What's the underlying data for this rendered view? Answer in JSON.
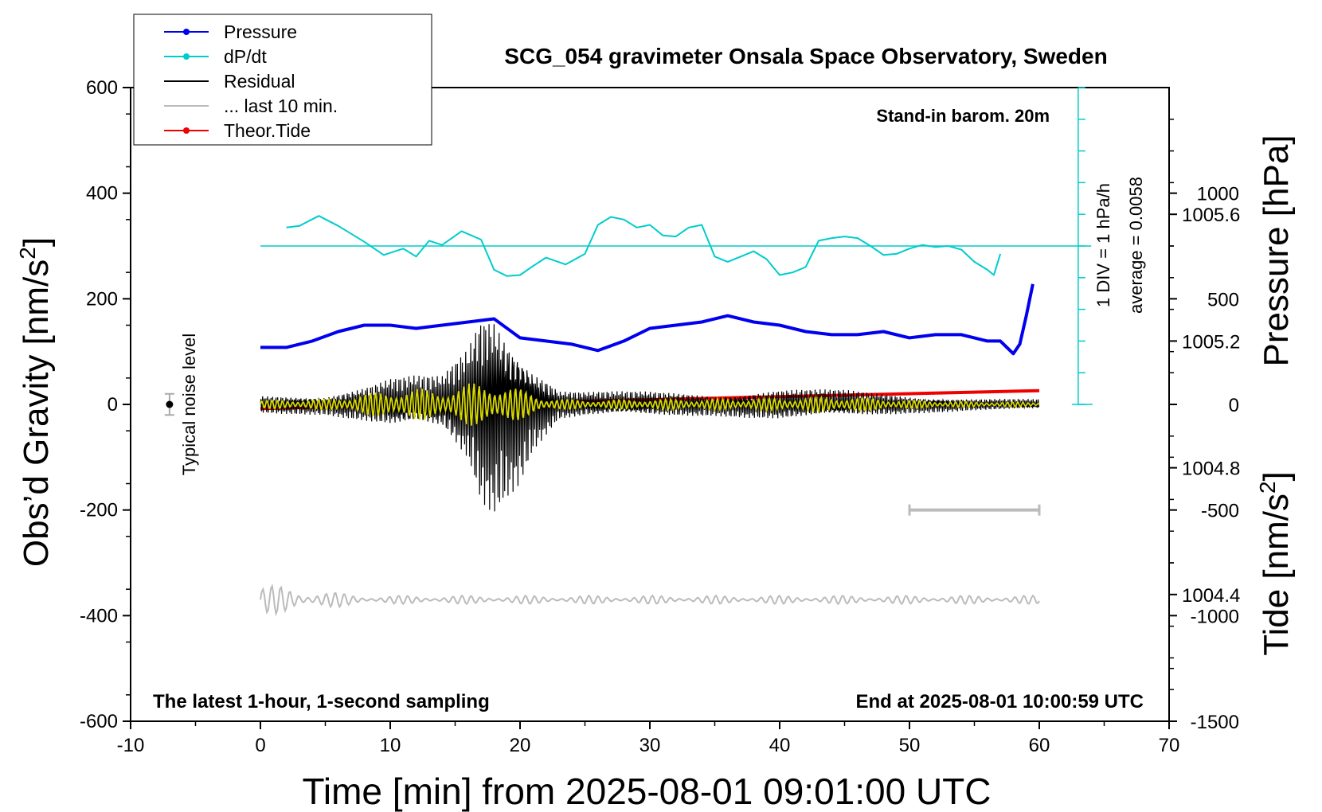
{
  "chart_data": {
    "type": "line",
    "title": "SCG_054 gravimeter Onsala Space Observatory, Sweden",
    "xlabel": "Time [min] from 2025-08-01 09:01:00 UTC",
    "ylabel_main": "Obs’d Gravity [nm/s²]",
    "ylabel_pressure": "Pressure [hPa]",
    "ylabel_tide": "Tide [nm/s²]",
    "xlim": [
      -10,
      70
    ],
    "ylim": [
      -600,
      600
    ],
    "x_ticks": [
      "-10",
      "0",
      "10",
      "20",
      "30",
      "40",
      "50",
      "60",
      "70"
    ],
    "y_ticks": [
      "600",
      "400",
      "200",
      "0",
      "-200",
      "-400",
      "-600"
    ],
    "pressure_ticks": [
      "1005.6",
      "1005.2",
      "1004.8",
      "1004.4"
    ],
    "pressure_range_hpa": [
      1004.0,
      1006.0
    ],
    "tide_ticks": [
      "1000",
      "500",
      "0",
      "-500",
      "-1000",
      "-1500"
    ],
    "tide_range": [
      -1500,
      1500
    ],
    "legend": [
      {
        "label": "Pressure",
        "color": "#0000ee",
        "marker": true
      },
      {
        "label": "dP/dt",
        "color": "#00cccc",
        "marker": true
      },
      {
        "label": "Residual",
        "color": "#000000",
        "marker": false
      },
      {
        "label": "... last 10 min.",
        "color": "#bbbbbb",
        "marker": false
      },
      {
        "label": "Theor.Tide",
        "color": "#ee0000",
        "marker": true
      }
    ],
    "annotations": {
      "barometer": "Stand-in barom. 20m",
      "latest": "The latest 1-hour, 1-second sampling",
      "end": "End at 2025-08-01 10:00:59 UTC",
      "noise": "Typical noise level",
      "div_label": "1 DIV = 1 hPa/h",
      "average": "average = 0.0058"
    },
    "noise_level": {
      "x": -7,
      "y": 0,
      "halfwidth": 20
    },
    "last10_bar": {
      "x0": 50,
      "x1": 60,
      "y": -200
    },
    "series": [
      {
        "name": "Pressure",
        "color": "#0000ee",
        "unit": "hPa",
        "x": [
          0,
          2,
          4,
          6,
          8,
          10,
          12,
          14,
          16,
          18,
          20,
          22,
          24,
          26,
          28,
          30,
          32,
          34,
          36,
          38,
          40,
          42,
          44,
          46,
          48,
          50,
          52,
          54,
          56,
          57,
          58,
          58.5,
          59,
          59.5
        ],
        "values": [
          1005.18,
          1005.18,
          1005.2,
          1005.23,
          1005.25,
          1005.25,
          1005.24,
          1005.25,
          1005.26,
          1005.27,
          1005.21,
          1005.2,
          1005.19,
          1005.17,
          1005.2,
          1005.24,
          1005.25,
          1005.26,
          1005.28,
          1005.26,
          1005.25,
          1005.23,
          1005.22,
          1005.22,
          1005.23,
          1005.21,
          1005.22,
          1005.22,
          1005.2,
          1005.2,
          1005.16,
          1005.19,
          1005.28,
          1005.38
        ]
      },
      {
        "name": "dP/dt",
        "color": "#00cccc",
        "unit": "y-axis units (0 level at 300)",
        "x": [
          2,
          3,
          4.5,
          6,
          8,
          9.5,
          11,
          12,
          13,
          14,
          15.5,
          17,
          18,
          19,
          20,
          21,
          22,
          23.5,
          25,
          26,
          27,
          28,
          29,
          30,
          31,
          32,
          33,
          34,
          35,
          36,
          37,
          38,
          39,
          40,
          41,
          42,
          43,
          44,
          45,
          46,
          47,
          48,
          49,
          50,
          51,
          52,
          53,
          54,
          55,
          56,
          56.5,
          57
        ],
        "values": [
          335,
          338,
          357,
          338,
          308,
          283,
          295,
          280,
          310,
          302,
          328,
          312,
          255,
          243,
          245,
          262,
          278,
          265,
          285,
          340,
          355,
          350,
          335,
          340,
          320,
          318,
          335,
          340,
          280,
          270,
          280,
          290,
          275,
          245,
          250,
          260,
          310,
          315,
          318,
          315,
          300,
          283,
          285,
          295,
          302,
          298,
          300,
          293,
          270,
          255,
          245,
          285
        ]
      },
      {
        "name": "Theor.Tide",
        "color": "#ee0000",
        "unit": "nm/s²",
        "x": [
          0,
          60
        ],
        "values": [
          -20,
          65
        ]
      },
      {
        "name": "Residual",
        "color": "#000000",
        "unit": "nm/s²",
        "x_range": [
          0,
          60
        ],
        "sampling": "1 s",
        "envelope_x": [
          0,
          5,
          8,
          10,
          12,
          14,
          16,
          17,
          18,
          19,
          20,
          21,
          22,
          23,
          25,
          30,
          35,
          40,
          45,
          50,
          55,
          60
        ],
        "envelope_amplitude": [
          18,
          20,
          35,
          50,
          55,
          55,
          120,
          200,
          215,
          180,
          150,
          90,
          60,
          30,
          25,
          25,
          22,
          30,
          28,
          18,
          12,
          10
        ]
      },
      {
        "name": "Filtered residual",
        "color": "#d8d800",
        "unit": "nm/s²",
        "x_range": [
          0,
          60
        ],
        "envelope_x": [
          0,
          5,
          8,
          10,
          12,
          14,
          16,
          18,
          20,
          22,
          25,
          30,
          35,
          40,
          45,
          50,
          55,
          60
        ],
        "envelope_amplitude": [
          8,
          10,
          20,
          28,
          30,
          28,
          40,
          45,
          30,
          12,
          8,
          10,
          10,
          12,
          15,
          8,
          5,
          4
        ]
      },
      {
        "name": "... last 10 min.",
        "color": "#bbbbbb",
        "unit": "nm/s² (offset -370)",
        "x_range": [
          0,
          60
        ],
        "baseline": -370,
        "amplitude_start": 30,
        "amplitude_end": 8
      }
    ]
  }
}
